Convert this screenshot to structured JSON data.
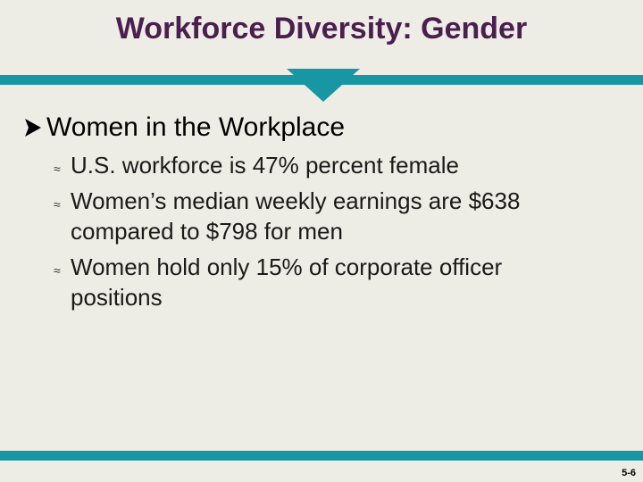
{
  "slide": {
    "title": "Workforce Diversity: Gender",
    "heading": "Women in the Workplace",
    "bullets": [
      "U.S. workforce is 47% percent female",
      "Women’s median weekly earnings are $638 compared to $798 for men",
      "Women hold only 15% of corporate officer positions"
    ],
    "page_number": "5-6"
  },
  "colors": {
    "title": "#4a1f4f",
    "accent_band": "#1996a4",
    "background": "#eeede5"
  },
  "icons": {
    "heading_bullet": "arrow-bullet-icon",
    "sub_bullet": "approx-bullet-icon"
  }
}
